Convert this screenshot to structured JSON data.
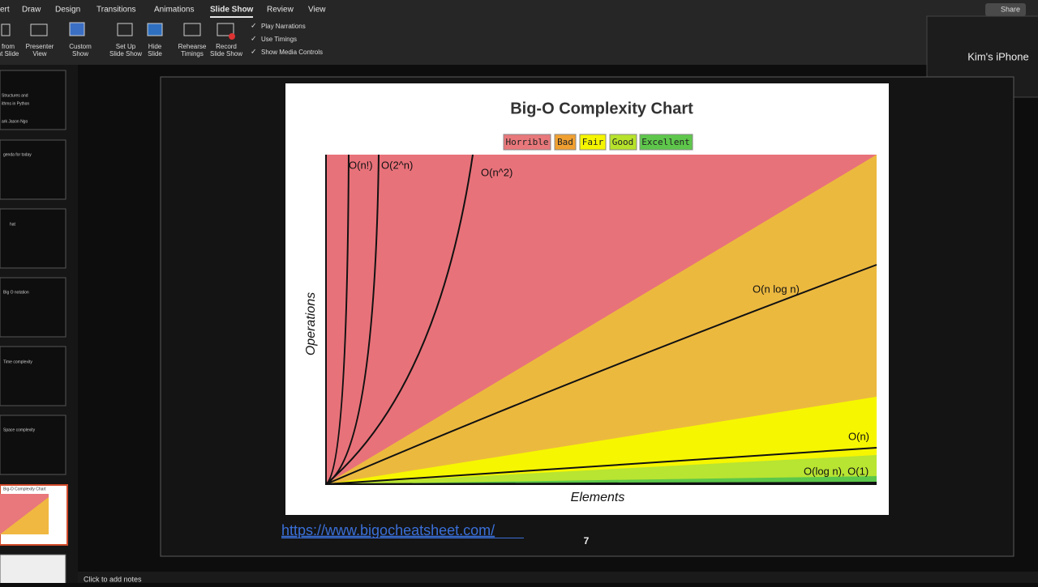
{
  "ribbon": {
    "tabs": [
      "ert",
      "Draw",
      "Design",
      "Transitions",
      "Animations",
      "Slide Show",
      "Review",
      "View"
    ],
    "share": "Share",
    "buttons": [
      [
        "from",
        "nt Slide"
      ],
      [
        "Presenter",
        "View"
      ],
      [
        "Custom",
        "Show"
      ],
      [
        "Set Up",
        "Slide Show"
      ],
      [
        "Hide",
        "Slide"
      ],
      [
        "Rehearse",
        "Timings"
      ],
      [
        "Record",
        "Slide Show"
      ]
    ],
    "checkboxes": [
      "Play Narrations",
      "Use Timings",
      "Show Media Controls"
    ]
  },
  "device_popup": "Kim's iPhone",
  "thumbnails": [
    [
      "Structures and",
      "ithms in Python",
      "ark Jason Ngo"
    ],
    [
      "genda for today"
    ],
    [
      "hat"
    ],
    [
      "Big O notation"
    ],
    [
      "Time complexity"
    ],
    [
      "Space complexity"
    ],
    [
      "Big-O Complexity Chart"
    ]
  ],
  "slide": {
    "chart": {
      "title": "Big-O Complexity Chart",
      "legend": [
        "Horrible",
        "Bad",
        "Fair",
        "Good",
        "Excellent"
      ],
      "curve_labels": [
        "O(n!)",
        "O(2^n)",
        "O(n^2)",
        "O(n log n)",
        "O(n)",
        "O(log n), O(1)"
      ],
      "y_axis_label": "Operations",
      "x_axis_label": "Elements"
    },
    "link": "https://www.bigocheatsheet.com/",
    "number": "7"
  },
  "notes": "Click to add notes"
}
